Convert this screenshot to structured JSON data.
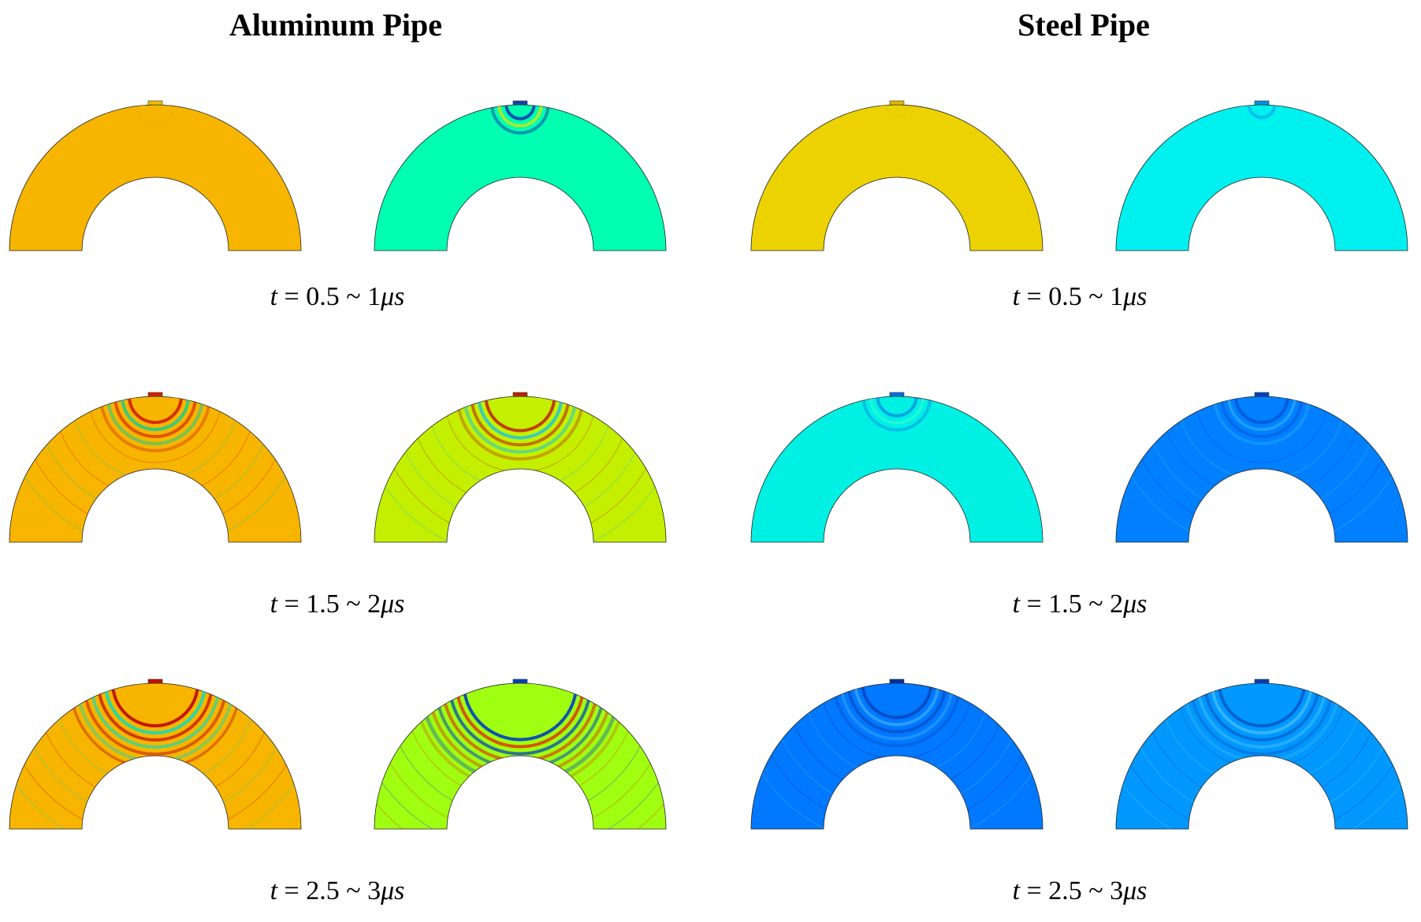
{
  "titles": {
    "aluminum": "Aluminum Pipe",
    "steel": "Steel Pipe"
  },
  "rows": [
    {
      "time_label": {
        "var": "t",
        "eq": " = 0.5 ~ 1",
        "unit": "μs"
      }
    },
    {
      "time_label": {
        "var": "t",
        "eq": " = 1.5 ~ 2",
        "unit": "μs"
      }
    },
    {
      "time_label": {
        "var": "t",
        "eq": " = 2.5 ~ 3",
        "unit": "μs"
      }
    }
  ],
  "panels": [
    {
      "material": "aluminum",
      "row": 0,
      "fill": "#f7b500",
      "wave": "#e8c000",
      "wave2": "#f2a400",
      "rings": 2,
      "strength": 0.25,
      "spread": 0.05
    },
    {
      "material": "aluminum",
      "row": 0,
      "fill": "#00ffb0",
      "wave": "#1a3fb0",
      "wave2": "#e8e000",
      "rings": 3,
      "strength": 0.9,
      "spread": 0.08
    },
    {
      "material": "steel",
      "row": 0,
      "fill": "#ecd200",
      "wave": "#e0b800",
      "wave2": "#f2dc00",
      "rings": 1,
      "strength": 0.15,
      "spread": 0.04
    },
    {
      "material": "steel",
      "row": 0,
      "fill": "#00f0f0",
      "wave": "#0090e0",
      "wave2": "#00ffe0",
      "rings": 2,
      "strength": 0.5,
      "spread": 0.06
    },
    {
      "material": "aluminum",
      "row": 1,
      "fill": "#f7b500",
      "wave": "#d02000",
      "wave2": "#00d0a0",
      "rings": 5,
      "strength": 0.9,
      "spread": 0.3
    },
    {
      "material": "aluminum",
      "row": 1,
      "fill": "#c4f000",
      "wave": "#c02000",
      "wave2": "#00c0ff",
      "rings": 5,
      "strength": 0.85,
      "spread": 0.45
    },
    {
      "material": "steel",
      "row": 1,
      "fill": "#00f0e4",
      "wave": "#0070e0",
      "wave2": "#40ffd0",
      "rings": 3,
      "strength": 0.6,
      "spread": 0.18
    },
    {
      "material": "steel",
      "row": 1,
      "fill": "#0080ff",
      "wave": "#0040c0",
      "wave2": "#40c0ff",
      "rings": 4,
      "strength": 0.55,
      "spread": 0.3
    },
    {
      "material": "aluminum",
      "row": 2,
      "fill": "#f7b500",
      "wave": "#c01000",
      "wave2": "#00e0c0",
      "rings": 7,
      "strength": 0.95,
      "spread": 0.6
    },
    {
      "material": "aluminum",
      "row": 2,
      "fill": "#a0ff10",
      "wave": "#0040c0",
      "wave2": "#e03000",
      "rings": 8,
      "strength": 0.9,
      "spread": 0.85
    },
    {
      "material": "steel",
      "row": 2,
      "fill": "#0078ff",
      "wave": "#0030a0",
      "wave2": "#50c0ff",
      "rings": 5,
      "strength": 0.6,
      "spread": 0.45
    },
    {
      "material": "steel",
      "row": 2,
      "fill": "#0098ff",
      "wave": "#0040b0",
      "wave2": "#60d0ff",
      "rings": 6,
      "strength": 0.6,
      "spread": 0.6
    }
  ]
}
